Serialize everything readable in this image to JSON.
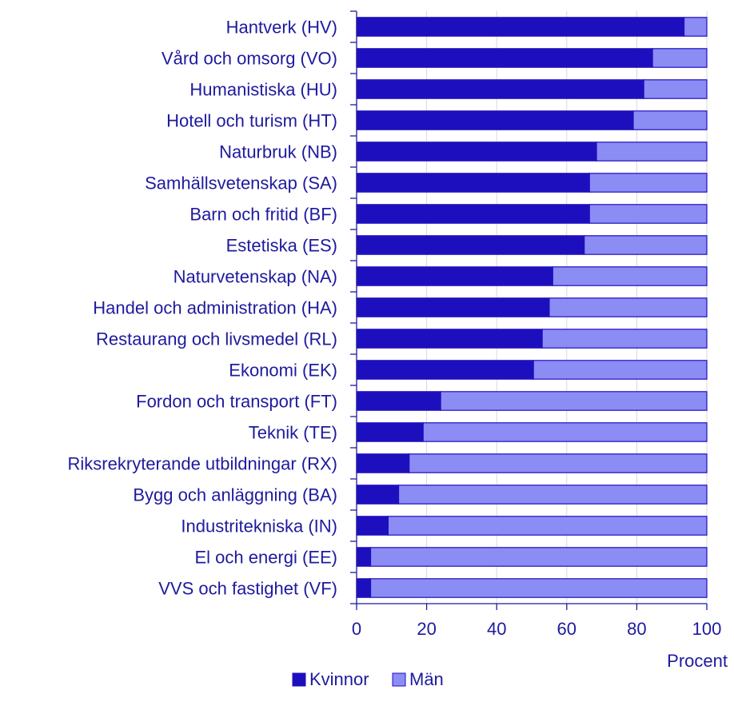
{
  "chart_data": {
    "type": "bar",
    "orientation": "horizontal",
    "stacked": true,
    "categories": [
      "Hantverk (HV)",
      "Vård och omsorg (VO)",
      "Humanistiska (HU)",
      "Hotell och turism (HT)",
      "Naturbruk (NB)",
      "Samhällsvetenskap (SA)",
      "Barn och fritid (BF)",
      "Estetiska (ES)",
      "Naturvetenskap (NA)",
      "Handel och administration (HA)",
      "Restaurang och livsmedel (RL)",
      "Ekonomi (EK)",
      "Fordon och transport (FT)",
      "Teknik (TE)",
      "Riksrekryterande utbildningar (RX)",
      "Bygg och anläggning (BA)",
      "Industritekniska (IN)",
      "El och energi (EE)",
      "VVS och fastighet (VF)"
    ],
    "series": [
      {
        "name": "Kvinnor",
        "color": "#1e0fbe",
        "values": [
          93.5,
          84.5,
          82,
          79,
          68.5,
          66.5,
          66.5,
          65,
          56,
          55,
          53,
          50.5,
          24,
          19,
          15,
          12,
          9,
          4,
          4
        ]
      },
      {
        "name": "Män",
        "color": "#8c8cf5",
        "values": [
          6.5,
          15.5,
          18,
          21,
          31.5,
          33.5,
          33.5,
          35,
          44,
          45,
          47,
          49.5,
          76,
          81,
          85,
          88,
          91,
          96,
          96
        ]
      }
    ],
    "xlim": [
      0,
      100
    ],
    "xticks": [
      "0",
      "20",
      "40",
      "60",
      "80",
      "100"
    ],
    "xlabel": "Procent",
    "ylabel": "",
    "grid": true,
    "legend": "bottom-left"
  }
}
